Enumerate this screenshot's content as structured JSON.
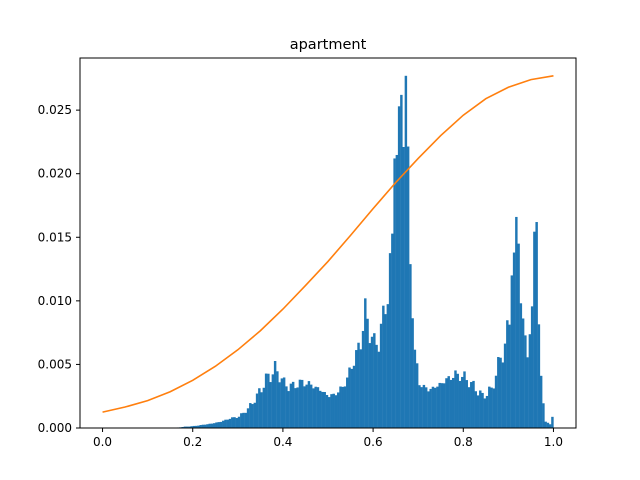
{
  "chart_data": {
    "type": "bar",
    "title": "apartment",
    "xlabel": "",
    "ylabel": "",
    "xlim": [
      -0.05,
      1.05
    ],
    "ylim": [
      0,
      0.0291
    ],
    "xticks": [
      0.0,
      0.2,
      0.4,
      0.6,
      0.8,
      1.0
    ],
    "xtick_labels": [
      "0.0",
      "0.2",
      "0.4",
      "0.6",
      "0.8",
      "1.0"
    ],
    "yticks": [
      0.0,
      0.005,
      0.01,
      0.015,
      0.02,
      0.025
    ],
    "ytick_labels": [
      "0.000",
      "0.005",
      "0.010",
      "0.015",
      "0.020",
      "0.025"
    ],
    "grid": false,
    "legend": "none",
    "series": [
      {
        "type": "histogram",
        "color": "#1f77b4",
        "bin_width": 0.005,
        "profile": [
          [
            0.16,
            2e-05
          ],
          [
            0.18,
            0.0001
          ],
          [
            0.2,
            0.00015
          ],
          [
            0.22,
            0.00025
          ],
          [
            0.24,
            0.00035
          ],
          [
            0.26,
            0.0005
          ],
          [
            0.28,
            0.00075
          ],
          [
            0.3,
            0.0009
          ],
          [
            0.32,
            0.0015
          ],
          [
            0.34,
            0.0025
          ],
          [
            0.36,
            0.0038
          ],
          [
            0.37,
            0.0042
          ],
          [
            0.38,
            0.0046
          ],
          [
            0.39,
            0.0042
          ],
          [
            0.4,
            0.0035
          ],
          [
            0.41,
            0.0033
          ],
          [
            0.42,
            0.0033
          ],
          [
            0.44,
            0.0036
          ],
          [
            0.46,
            0.0034
          ],
          [
            0.48,
            0.003
          ],
          [
            0.5,
            0.0025
          ],
          [
            0.52,
            0.0028
          ],
          [
            0.54,
            0.0038
          ],
          [
            0.55,
            0.005
          ],
          [
            0.56,
            0.0056
          ],
          [
            0.57,
            0.007
          ],
          [
            0.58,
            0.009
          ],
          [
            0.59,
            0.0078
          ],
          [
            0.6,
            0.0065
          ],
          [
            0.61,
            0.007
          ],
          [
            0.62,
            0.0085
          ],
          [
            0.63,
            0.011
          ],
          [
            0.64,
            0.014
          ],
          [
            0.65,
            0.023
          ],
          [
            0.655,
            0.026
          ],
          [
            0.66,
            0.024
          ],
          [
            0.665,
            0.025
          ],
          [
            0.67,
            0.0275
          ],
          [
            0.675,
            0.02
          ],
          [
            0.68,
            0.013
          ],
          [
            0.69,
            0.006
          ],
          [
            0.7,
            0.0035
          ],
          [
            0.72,
            0.003
          ],
          [
            0.74,
            0.0033
          ],
          [
            0.76,
            0.0038
          ],
          [
            0.78,
            0.0042
          ],
          [
            0.8,
            0.004
          ],
          [
            0.82,
            0.0033
          ],
          [
            0.84,
            0.0025
          ],
          [
            0.86,
            0.003
          ],
          [
            0.88,
            0.0055
          ],
          [
            0.89,
            0.0065
          ],
          [
            0.9,
            0.0085
          ],
          [
            0.91,
            0.013
          ],
          [
            0.915,
            0.0165
          ],
          [
            0.92,
            0.013
          ],
          [
            0.93,
            0.008
          ],
          [
            0.94,
            0.006
          ],
          [
            0.95,
            0.009
          ],
          [
            0.955,
            0.0155
          ],
          [
            0.96,
            0.016
          ],
          [
            0.965,
            0.008
          ],
          [
            0.97,
            0.004
          ],
          [
            0.975,
            0.002
          ],
          [
            0.98,
            0.0005
          ],
          [
            0.99,
            0.0003
          ],
          [
            0.995,
            0.0009
          ],
          [
            1.0,
            0.001
          ]
        ],
        "spikes": [
          [
            0.645,
            0.0212
          ],
          [
            0.655,
            0.0253
          ],
          [
            0.66,
            0.0262
          ],
          [
            0.67,
            0.0277
          ],
          [
            0.915,
            0.0166
          ],
          [
            0.96,
            0.0162
          ],
          [
            0.92,
            0.0145
          ],
          [
            0.905,
            0.012
          ]
        ]
      },
      {
        "type": "line",
        "color": "#ff7f0e",
        "x": [
          0.0,
          0.05,
          0.1,
          0.15,
          0.2,
          0.25,
          0.3,
          0.35,
          0.4,
          0.45,
          0.5,
          0.55,
          0.6,
          0.65,
          0.7,
          0.75,
          0.8,
          0.85,
          0.9,
          0.95,
          1.0
        ],
        "y": [
          0.00125,
          0.00165,
          0.00215,
          0.00285,
          0.00375,
          0.00485,
          0.00615,
          0.00765,
          0.00935,
          0.0112,
          0.0131,
          0.01515,
          0.01725,
          0.0193,
          0.0212,
          0.023,
          0.0246,
          0.0259,
          0.0268,
          0.0274,
          0.0277
        ]
      }
    ]
  }
}
